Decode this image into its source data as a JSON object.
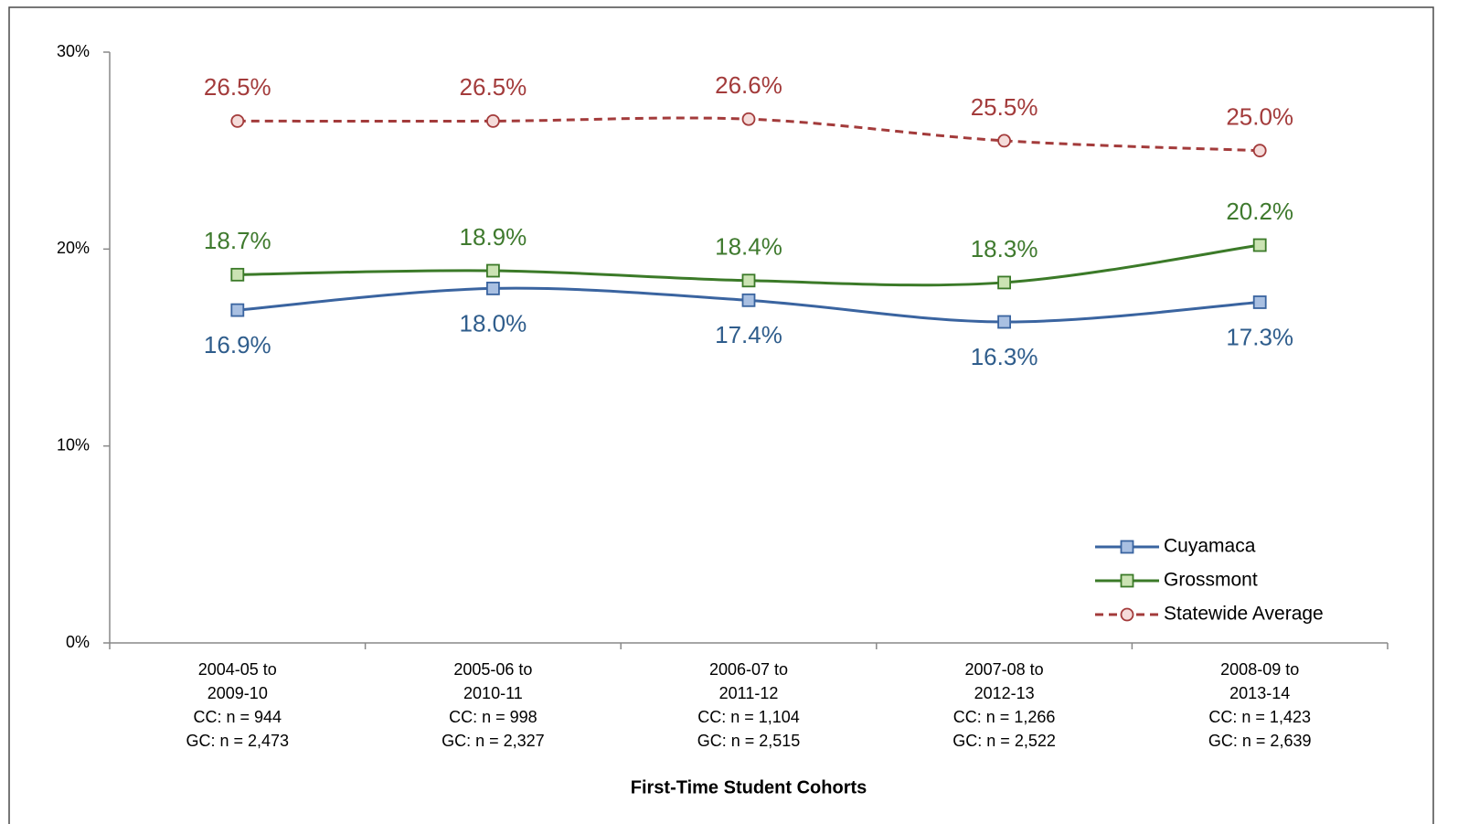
{
  "chart_data": {
    "type": "line",
    "x_label": "First-Time Student Cohorts",
    "categories": [
      [
        "2004-05 to",
        "2009-10",
        "CC: n = 944",
        "GC: n = 2,473"
      ],
      [
        "2005-06 to",
        "2010-11",
        "CC: n = 998",
        "GC: n = 2,327"
      ],
      [
        "2006-07 to",
        "2011-12",
        "CC: n = 1,104",
        "GC: n = 2,515"
      ],
      [
        "2007-08 to",
        "2012-13",
        "CC: n = 1,266",
        "GC: n = 2,522"
      ],
      [
        "2008-09 to",
        "2013-14",
        "CC: n = 1,423",
        "GC: n = 2,639"
      ]
    ],
    "series": [
      {
        "name": "Cuyamaca",
        "color": "#3a64a0",
        "marker": "square",
        "marker_fill": "#a9c0e2",
        "label_color": "#2f5d8c",
        "label_position": "below",
        "dashed": false,
        "values": [
          16.9,
          18.0,
          17.4,
          16.3,
          17.3
        ],
        "value_labels": [
          "16.9%",
          "18.0%",
          "17.4%",
          "16.3%",
          "17.3%"
        ]
      },
      {
        "name": "Grossmont",
        "color": "#3b7a28",
        "marker": "square",
        "marker_fill": "#cbe3b3",
        "label_color": "#3f7a2e",
        "label_position": "above",
        "dashed": false,
        "values": [
          18.7,
          18.9,
          18.4,
          18.3,
          20.2
        ],
        "value_labels": [
          "18.7%",
          "18.9%",
          "18.4%",
          "18.3%",
          "20.2%"
        ]
      },
      {
        "name": "Statewide Average",
        "color": "#a33b3b",
        "marker": "circle",
        "marker_fill": "#f5dcda",
        "label_color": "#a33b3b",
        "label_position": "above",
        "dashed": true,
        "values": [
          26.5,
          26.5,
          26.6,
          25.5,
          25.0
        ],
        "value_labels": [
          "26.5%",
          "26.5%",
          "26.6%",
          "25.5%",
          "25.0%"
        ]
      }
    ],
    "ylim": [
      0,
      30
    ],
    "yticks": [
      {
        "value": 0,
        "label": "0%"
      },
      {
        "value": 10,
        "label": "10%"
      },
      {
        "value": 20,
        "label": "20%"
      },
      {
        "value": 30,
        "label": "30%"
      }
    ],
    "grid": false,
    "legend": "lower right",
    "smooth": true
  }
}
